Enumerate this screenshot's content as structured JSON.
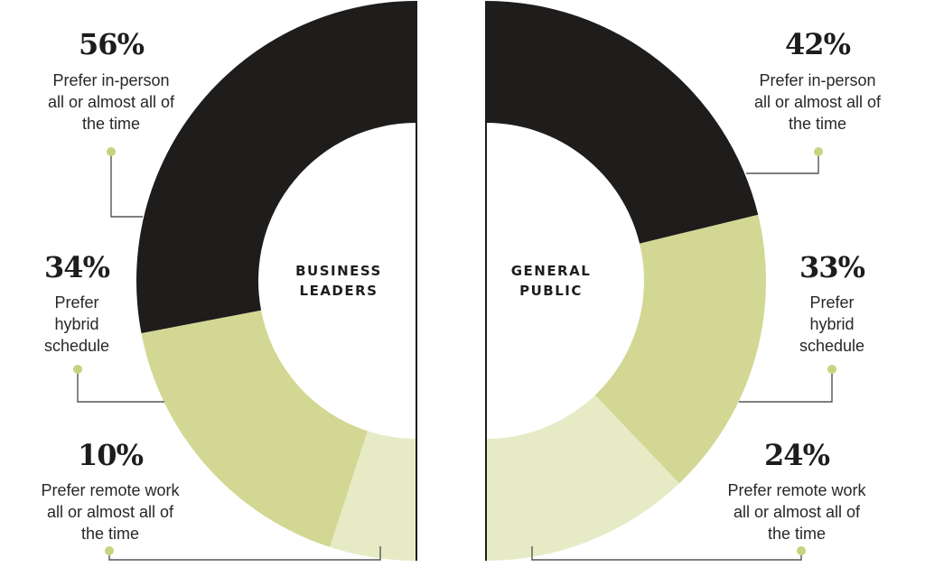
{
  "colors": {
    "in_person": "#1f1c1c",
    "hybrid": "#d2d793",
    "remote": "#e6ebc6",
    "leader_line": "#555555",
    "dot": "#c9d27e"
  },
  "chart_data": [
    {
      "type": "pie",
      "title": "",
      "center_label": [
        "BUSINESS",
        "LEADERS"
      ],
      "slices": [
        {
          "key": "in_person",
          "value": 56,
          "label": "56%",
          "desc": [
            "Prefer in-person",
            "all or almost all of",
            "the time"
          ]
        },
        {
          "key": "hybrid",
          "value": 34,
          "label": "34%",
          "desc": [
            "Prefer",
            "hybrid",
            "schedule"
          ]
        },
        {
          "key": "remote",
          "value": 10,
          "label": "10%",
          "desc": [
            "Prefer remote work",
            "all or almost all of",
            "the time"
          ]
        }
      ]
    },
    {
      "type": "pie",
      "title": "",
      "center_label": [
        "GENERAL",
        "PUBLIC"
      ],
      "slices": [
        {
          "key": "in_person",
          "value": 42,
          "label": "42%",
          "desc": [
            "Prefer in-person",
            "all or almost all of",
            "the time"
          ]
        },
        {
          "key": "hybrid",
          "value": 33,
          "label": "33%",
          "desc": [
            "Prefer",
            "hybrid",
            "schedule"
          ]
        },
        {
          "key": "remote",
          "value": 24,
          "label": "24%",
          "desc": [
            "Prefer remote work",
            "all or almost all of",
            "the time"
          ]
        }
      ]
    }
  ]
}
